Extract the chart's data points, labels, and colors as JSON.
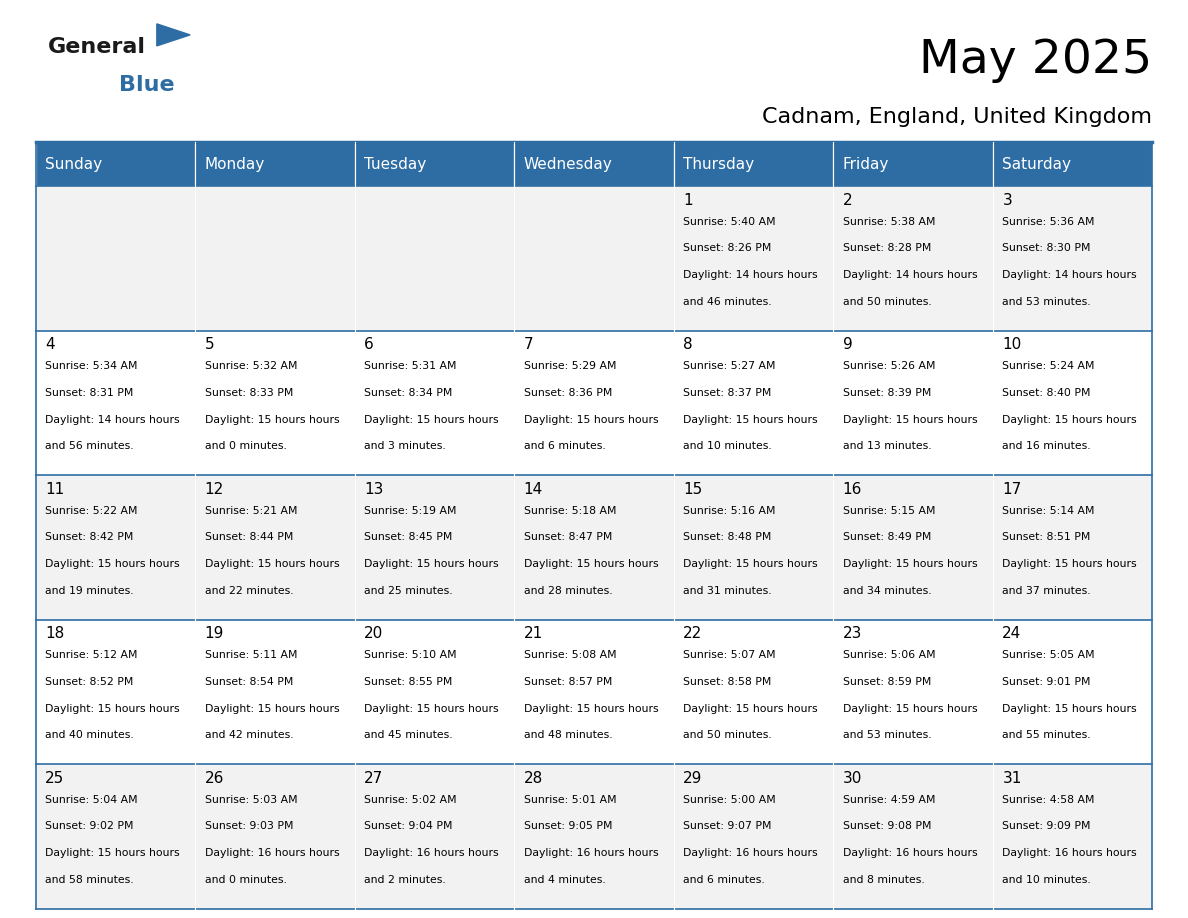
{
  "title": "May 2025",
  "subtitle": "Cadnam, England, United Kingdom",
  "header_bg": "#2E6DA4",
  "header_text_color": "#FFFFFF",
  "cell_bg_odd": "#F2F2F2",
  "cell_bg_even": "#FFFFFF",
  "border_color": "#2E6DA4",
  "text_color": "#000000",
  "days_of_week": [
    "Sunday",
    "Monday",
    "Tuesday",
    "Wednesday",
    "Thursday",
    "Friday",
    "Saturday"
  ],
  "calendar_data": [
    [
      {
        "day": "",
        "sunrise": "",
        "sunset": "",
        "daylight": ""
      },
      {
        "day": "",
        "sunrise": "",
        "sunset": "",
        "daylight": ""
      },
      {
        "day": "",
        "sunrise": "",
        "sunset": "",
        "daylight": ""
      },
      {
        "day": "",
        "sunrise": "",
        "sunset": "",
        "daylight": ""
      },
      {
        "day": "1",
        "sunrise": "5:40 AM",
        "sunset": "8:26 PM",
        "daylight": "14 hours and 46 minutes."
      },
      {
        "day": "2",
        "sunrise": "5:38 AM",
        "sunset": "8:28 PM",
        "daylight": "14 hours and 50 minutes."
      },
      {
        "day": "3",
        "sunrise": "5:36 AM",
        "sunset": "8:30 PM",
        "daylight": "14 hours and 53 minutes."
      }
    ],
    [
      {
        "day": "4",
        "sunrise": "5:34 AM",
        "sunset": "8:31 PM",
        "daylight": "14 hours and 56 minutes."
      },
      {
        "day": "5",
        "sunrise": "5:32 AM",
        "sunset": "8:33 PM",
        "daylight": "15 hours and 0 minutes."
      },
      {
        "day": "6",
        "sunrise": "5:31 AM",
        "sunset": "8:34 PM",
        "daylight": "15 hours and 3 minutes."
      },
      {
        "day": "7",
        "sunrise": "5:29 AM",
        "sunset": "8:36 PM",
        "daylight": "15 hours and 6 minutes."
      },
      {
        "day": "8",
        "sunrise": "5:27 AM",
        "sunset": "8:37 PM",
        "daylight": "15 hours and 10 minutes."
      },
      {
        "day": "9",
        "sunrise": "5:26 AM",
        "sunset": "8:39 PM",
        "daylight": "15 hours and 13 minutes."
      },
      {
        "day": "10",
        "sunrise": "5:24 AM",
        "sunset": "8:40 PM",
        "daylight": "15 hours and 16 minutes."
      }
    ],
    [
      {
        "day": "11",
        "sunrise": "5:22 AM",
        "sunset": "8:42 PM",
        "daylight": "15 hours and 19 minutes."
      },
      {
        "day": "12",
        "sunrise": "5:21 AM",
        "sunset": "8:44 PM",
        "daylight": "15 hours and 22 minutes."
      },
      {
        "day": "13",
        "sunrise": "5:19 AM",
        "sunset": "8:45 PM",
        "daylight": "15 hours and 25 minutes."
      },
      {
        "day": "14",
        "sunrise": "5:18 AM",
        "sunset": "8:47 PM",
        "daylight": "15 hours and 28 minutes."
      },
      {
        "day": "15",
        "sunrise": "5:16 AM",
        "sunset": "8:48 PM",
        "daylight": "15 hours and 31 minutes."
      },
      {
        "day": "16",
        "sunrise": "5:15 AM",
        "sunset": "8:49 PM",
        "daylight": "15 hours and 34 minutes."
      },
      {
        "day": "17",
        "sunrise": "5:14 AM",
        "sunset": "8:51 PM",
        "daylight": "15 hours and 37 minutes."
      }
    ],
    [
      {
        "day": "18",
        "sunrise": "5:12 AM",
        "sunset": "8:52 PM",
        "daylight": "15 hours and 40 minutes."
      },
      {
        "day": "19",
        "sunrise": "5:11 AM",
        "sunset": "8:54 PM",
        "daylight": "15 hours and 42 minutes."
      },
      {
        "day": "20",
        "sunrise": "5:10 AM",
        "sunset": "8:55 PM",
        "daylight": "15 hours and 45 minutes."
      },
      {
        "day": "21",
        "sunrise": "5:08 AM",
        "sunset": "8:57 PM",
        "daylight": "15 hours and 48 minutes."
      },
      {
        "day": "22",
        "sunrise": "5:07 AM",
        "sunset": "8:58 PM",
        "daylight": "15 hours and 50 minutes."
      },
      {
        "day": "23",
        "sunrise": "5:06 AM",
        "sunset": "8:59 PM",
        "daylight": "15 hours and 53 minutes."
      },
      {
        "day": "24",
        "sunrise": "5:05 AM",
        "sunset": "9:01 PM",
        "daylight": "15 hours and 55 minutes."
      }
    ],
    [
      {
        "day": "25",
        "sunrise": "5:04 AM",
        "sunset": "9:02 PM",
        "daylight": "15 hours and 58 minutes."
      },
      {
        "day": "26",
        "sunrise": "5:03 AM",
        "sunset": "9:03 PM",
        "daylight": "16 hours and 0 minutes."
      },
      {
        "day": "27",
        "sunrise": "5:02 AM",
        "sunset": "9:04 PM",
        "daylight": "16 hours and 2 minutes."
      },
      {
        "day": "28",
        "sunrise": "5:01 AM",
        "sunset": "9:05 PM",
        "daylight": "16 hours and 4 minutes."
      },
      {
        "day": "29",
        "sunrise": "5:00 AM",
        "sunset": "9:07 PM",
        "daylight": "16 hours and 6 minutes."
      },
      {
        "day": "30",
        "sunrise": "4:59 AM",
        "sunset": "9:08 PM",
        "daylight": "16 hours and 8 minutes."
      },
      {
        "day": "31",
        "sunrise": "4:58 AM",
        "sunset": "9:09 PM",
        "daylight": "16 hours and 10 minutes."
      }
    ]
  ]
}
